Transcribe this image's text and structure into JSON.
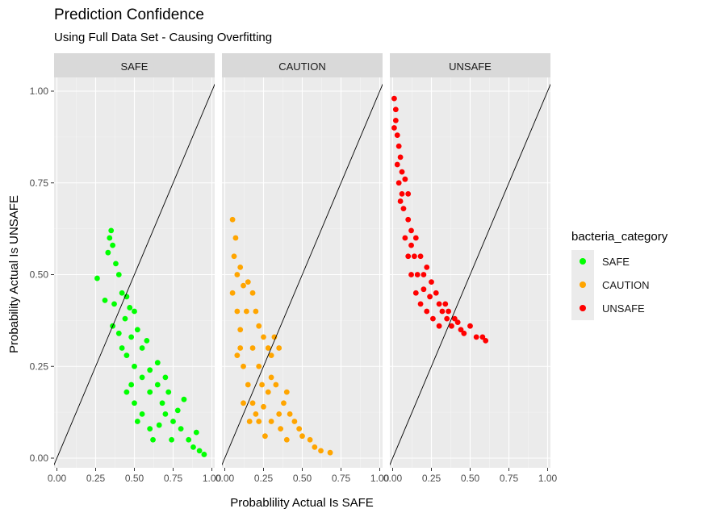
{
  "chart_data": {
    "type": "scatter",
    "title": "Prediction Confidence",
    "subtitle": "Using Full Data Set - Causing Overfitting",
    "xlabel": "Probablility Actual Is SAFE",
    "ylabel": "Probability Actual Is UNSAFE",
    "xlim": [
      0,
      1
    ],
    "ylim": [
      0,
      1
    ],
    "x_ticks": [
      "0.00",
      "0.25",
      "0.50",
      "0.75",
      "1.00"
    ],
    "y_ticks": [
      "0.00",
      "0.25",
      "0.50",
      "0.75",
      "1.00"
    ],
    "grid": true,
    "reference_line": {
      "slope": 1,
      "intercept": 0
    },
    "legend": {
      "title": "bacteria_category",
      "position": "right"
    },
    "facets": [
      {
        "label": "SAFE",
        "color": "#00ff00",
        "points": [
          [
            0.26,
            0.49
          ],
          [
            0.31,
            0.43
          ],
          [
            0.33,
            0.56
          ],
          [
            0.34,
            0.6
          ],
          [
            0.35,
            0.62
          ],
          [
            0.36,
            0.58
          ],
          [
            0.38,
            0.53
          ],
          [
            0.37,
            0.42
          ],
          [
            0.36,
            0.36
          ],
          [
            0.4,
            0.5
          ],
          [
            0.42,
            0.45
          ],
          [
            0.45,
            0.44
          ],
          [
            0.44,
            0.38
          ],
          [
            0.47,
            0.41
          ],
          [
            0.5,
            0.4
          ],
          [
            0.48,
            0.33
          ],
          [
            0.52,
            0.35
          ],
          [
            0.55,
            0.3
          ],
          [
            0.45,
            0.28
          ],
          [
            0.5,
            0.25
          ],
          [
            0.55,
            0.22
          ],
          [
            0.6,
            0.24
          ],
          [
            0.6,
            0.18
          ],
          [
            0.65,
            0.2
          ],
          [
            0.68,
            0.15
          ],
          [
            0.7,
            0.12
          ],
          [
            0.72,
            0.18
          ],
          [
            0.75,
            0.1
          ],
          [
            0.78,
            0.13
          ],
          [
            0.8,
            0.08
          ],
          [
            0.85,
            0.05
          ],
          [
            0.88,
            0.03
          ],
          [
            0.92,
            0.02
          ],
          [
            0.95,
            0.01
          ],
          [
            0.55,
            0.12
          ],
          [
            0.6,
            0.08
          ],
          [
            0.62,
            0.05
          ],
          [
            0.5,
            0.15
          ],
          [
            0.48,
            0.2
          ],
          [
            0.42,
            0.3
          ],
          [
            0.4,
            0.34
          ],
          [
            0.58,
            0.32
          ],
          [
            0.65,
            0.26
          ],
          [
            0.7,
            0.22
          ],
          [
            0.82,
            0.16
          ],
          [
            0.9,
            0.07
          ],
          [
            0.45,
            0.18
          ],
          [
            0.52,
            0.1
          ],
          [
            0.66,
            0.09
          ],
          [
            0.74,
            0.05
          ]
        ]
      },
      {
        "label": "CAUTION",
        "color": "#ffa500",
        "points": [
          [
            0.05,
            0.65
          ],
          [
            0.07,
            0.6
          ],
          [
            0.06,
            0.55
          ],
          [
            0.08,
            0.5
          ],
          [
            0.1,
            0.52
          ],
          [
            0.12,
            0.47
          ],
          [
            0.15,
            0.48
          ],
          [
            0.18,
            0.45
          ],
          [
            0.2,
            0.4
          ],
          [
            0.22,
            0.36
          ],
          [
            0.25,
            0.33
          ],
          [
            0.28,
            0.3
          ],
          [
            0.3,
            0.28
          ],
          [
            0.32,
            0.33
          ],
          [
            0.35,
            0.3
          ],
          [
            0.1,
            0.35
          ],
          [
            0.08,
            0.28
          ],
          [
            0.12,
            0.25
          ],
          [
            0.15,
            0.2
          ],
          [
            0.18,
            0.15
          ],
          [
            0.2,
            0.12
          ],
          [
            0.22,
            0.1
          ],
          [
            0.25,
            0.14
          ],
          [
            0.28,
            0.18
          ],
          [
            0.3,
            0.22
          ],
          [
            0.33,
            0.2
          ],
          [
            0.35,
            0.12
          ],
          [
            0.38,
            0.15
          ],
          [
            0.4,
            0.18
          ],
          [
            0.42,
            0.12
          ],
          [
            0.45,
            0.1
          ],
          [
            0.48,
            0.08
          ],
          [
            0.5,
            0.06
          ],
          [
            0.55,
            0.05
          ],
          [
            0.58,
            0.03
          ],
          [
            0.62,
            0.02
          ],
          [
            0.68,
            0.015
          ],
          [
            0.14,
            0.4
          ],
          [
            0.18,
            0.3
          ],
          [
            0.22,
            0.25
          ],
          [
            0.1,
            0.3
          ],
          [
            0.12,
            0.15
          ],
          [
            0.16,
            0.1
          ],
          [
            0.26,
            0.06
          ],
          [
            0.3,
            0.1
          ],
          [
            0.36,
            0.08
          ],
          [
            0.05,
            0.45
          ],
          [
            0.08,
            0.4
          ],
          [
            0.24,
            0.2
          ],
          [
            0.4,
            0.05
          ]
        ]
      },
      {
        "label": "UNSAFE",
        "color": "#ff0000",
        "points": [
          [
            0.01,
            0.98
          ],
          [
            0.02,
            0.95
          ],
          [
            0.01,
            0.9
          ],
          [
            0.03,
            0.88
          ],
          [
            0.04,
            0.85
          ],
          [
            0.05,
            0.82
          ],
          [
            0.06,
            0.78
          ],
          [
            0.08,
            0.76
          ],
          [
            0.1,
            0.72
          ],
          [
            0.05,
            0.7
          ],
          [
            0.07,
            0.68
          ],
          [
            0.1,
            0.65
          ],
          [
            0.12,
            0.62
          ],
          [
            0.15,
            0.6
          ],
          [
            0.14,
            0.55
          ],
          [
            0.18,
            0.55
          ],
          [
            0.2,
            0.5
          ],
          [
            0.22,
            0.52
          ],
          [
            0.25,
            0.48
          ],
          [
            0.28,
            0.45
          ],
          [
            0.3,
            0.42
          ],
          [
            0.32,
            0.4
          ],
          [
            0.35,
            0.38
          ],
          [
            0.38,
            0.36
          ],
          [
            0.4,
            0.38
          ],
          [
            0.42,
            0.37
          ],
          [
            0.44,
            0.35
          ],
          [
            0.46,
            0.34
          ],
          [
            0.5,
            0.36
          ],
          [
            0.54,
            0.33
          ],
          [
            0.58,
            0.33
          ],
          [
            0.6,
            0.32
          ],
          [
            0.08,
            0.6
          ],
          [
            0.1,
            0.55
          ],
          [
            0.12,
            0.5
          ],
          [
            0.15,
            0.45
          ],
          [
            0.18,
            0.42
          ],
          [
            0.22,
            0.4
          ],
          [
            0.26,
            0.38
          ],
          [
            0.3,
            0.36
          ],
          [
            0.03,
            0.8
          ],
          [
            0.06,
            0.72
          ],
          [
            0.16,
            0.5
          ],
          [
            0.24,
            0.44
          ],
          [
            0.34,
            0.42
          ],
          [
            0.02,
            0.92
          ],
          [
            0.04,
            0.75
          ],
          [
            0.12,
            0.58
          ],
          [
            0.2,
            0.46
          ],
          [
            0.36,
            0.4
          ]
        ]
      }
    ]
  },
  "page": {
    "title": "Prediction Confidence",
    "subtitle": "Using Full Data Set - Causing Overfitting"
  },
  "legend": {
    "title": "bacteria_category",
    "items": [
      {
        "label": "SAFE",
        "color": "#00ff00"
      },
      {
        "label": "CAUTION",
        "color": "#ffa500"
      },
      {
        "label": "UNSAFE",
        "color": "#ff0000"
      }
    ]
  }
}
